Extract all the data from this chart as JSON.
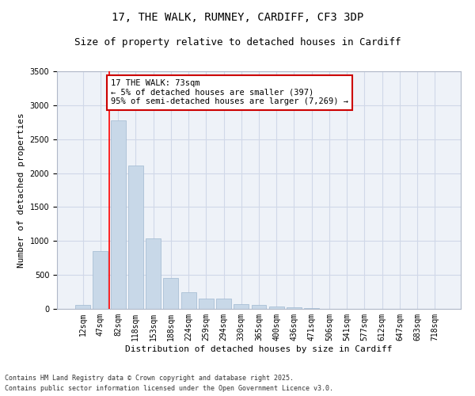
{
  "title1": "17, THE WALK, RUMNEY, CARDIFF, CF3 3DP",
  "title2": "Size of property relative to detached houses in Cardiff",
  "xlabel": "Distribution of detached houses by size in Cardiff",
  "ylabel": "Number of detached properties",
  "bar_color": "#c8d8e8",
  "bar_edge_color": "#a0b8d0",
  "grid_color": "#d0d8e8",
  "background_color": "#eef2f8",
  "categories": [
    "12sqm",
    "47sqm",
    "82sqm",
    "118sqm",
    "153sqm",
    "188sqm",
    "224sqm",
    "259sqm",
    "294sqm",
    "330sqm",
    "365sqm",
    "400sqm",
    "436sqm",
    "471sqm",
    "506sqm",
    "541sqm",
    "577sqm",
    "612sqm",
    "647sqm",
    "683sqm",
    "718sqm"
  ],
  "values": [
    55,
    850,
    2780,
    2110,
    1040,
    460,
    250,
    155,
    155,
    65,
    55,
    35,
    20,
    10,
    5,
    3,
    2,
    1,
    0,
    0,
    0
  ],
  "ylim": [
    0,
    3500
  ],
  "yticks": [
    0,
    500,
    1000,
    1500,
    2000,
    2500,
    3000,
    3500
  ],
  "annotation_text": "17 THE WALK: 73sqm\n← 5% of detached houses are smaller (397)\n95% of semi-detached houses are larger (7,269) →",
  "annotation_box_color": "#ffffff",
  "annotation_box_edge_color": "#cc0000",
  "footer1": "Contains HM Land Registry data © Crown copyright and database right 2025.",
  "footer2": "Contains public sector information licensed under the Open Government Licence v3.0.",
  "title_fontsize": 10,
  "subtitle_fontsize": 9,
  "tick_fontsize": 7,
  "ylabel_fontsize": 8,
  "xlabel_fontsize": 8,
  "footer_fontsize": 6,
  "annotation_fontsize": 7.5,
  "redline_x": 1.5
}
